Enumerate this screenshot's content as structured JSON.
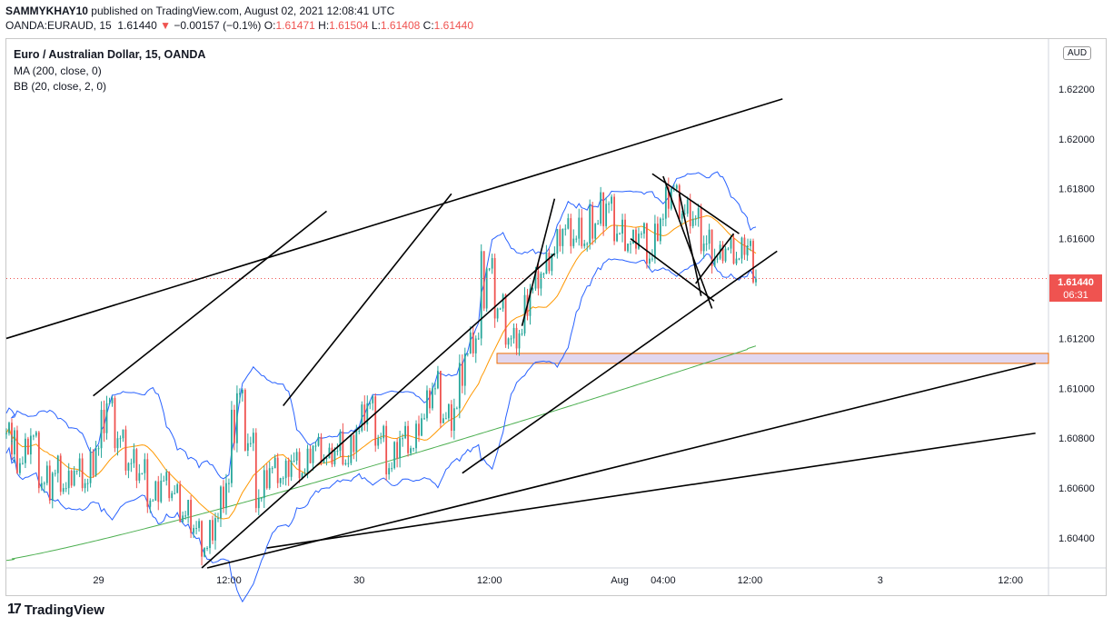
{
  "header": {
    "author": "SAMMYKHAY10",
    "published_text": "published on TradingView.com, August 02, 2021 12:08:41 UTC",
    "symbol": "OANDA:EURAUD, 15",
    "last": "1.61440",
    "change_arrow": "▼",
    "change": "−0.00157 (−0.1%)",
    "o_label": "O:",
    "o_value": "1.61471",
    "h_label": "H:",
    "h_value": "1.61504",
    "l_label": "L:",
    "l_value": "1.61408",
    "c_label": "C:",
    "c_value": "1.61440"
  },
  "legend": {
    "title": "Euro / Australian Dollar, 15, OANDA",
    "ma": "MA (200, close, 0)",
    "bb": "BB (20, close, 2, 0)"
  },
  "price_scale": {
    "currency": "AUD",
    "current_price": "1.61440",
    "countdown": "06:31"
  },
  "footer": {
    "brand": "TradingView"
  },
  "colors": {
    "up": "#26a69a",
    "down": "#ef5350",
    "ma": "#4caf50",
    "bb_basis": "#ff9800",
    "bb_bands": "#2962ff",
    "zone_fill": "#e1d7ef",
    "zone_border": "#ef6c00"
  },
  "chart_data": {
    "type": "candlestick",
    "y_ticks": [
      "1.62200",
      "1.62000",
      "1.61800",
      "1.61600",
      "1.61200",
      "1.61000",
      "1.60800",
      "1.60600",
      "1.60400"
    ],
    "y_tick_values": [
      1.622,
      1.62,
      1.618,
      1.616,
      1.612,
      1.61,
      1.608,
      1.606,
      1.604
    ],
    "ylim": [
      1.6028,
      1.624
    ],
    "x_ticks": [
      "29",
      "12:00",
      "30",
      "12:00",
      "Aug",
      "04:00",
      "12:00",
      "3",
      "12:00"
    ],
    "x_tick_hours": [
      0,
      12,
      24,
      36,
      48,
      52,
      60,
      72,
      84
    ],
    "xlim_hours": [
      -8.5,
      87.5
    ],
    "current_price": 1.6144,
    "candles_hourly": [
      [
        -8.5,
        1.6082,
        1.6088,
        1.6068,
        1.6079
      ],
      [
        -8.0,
        1.6079,
        1.6085,
        1.6062,
        1.607
      ],
      [
        -7.0,
        1.607,
        1.6084,
        1.6066,
        1.6081
      ],
      [
        -6.0,
        1.6081,
        1.6083,
        1.6058,
        1.6062
      ],
      [
        -5.0,
        1.6062,
        1.6072,
        1.6044,
        1.6066
      ],
      [
        -4.0,
        1.6066,
        1.6076,
        1.6057,
        1.606
      ],
      [
        -3.0,
        1.606,
        1.607,
        1.6055,
        1.6067
      ],
      [
        -2.0,
        1.6067,
        1.6074,
        1.6058,
        1.6062
      ],
      [
        -1.0,
        1.6062,
        1.608,
        1.6054,
        1.6076
      ],
      [
        0.0,
        1.6076,
        1.6098,
        1.607,
        1.6094
      ],
      [
        1.0,
        1.6094,
        1.6097,
        1.6072,
        1.608
      ],
      [
        2.0,
        1.608,
        1.6085,
        1.6064,
        1.607
      ],
      [
        3.0,
        1.607,
        1.6078,
        1.606,
        1.6066
      ],
      [
        4.0,
        1.6066,
        1.6074,
        1.605,
        1.6055
      ],
      [
        5.0,
        1.6055,
        1.6066,
        1.6046,
        1.6063
      ],
      [
        6.0,
        1.6063,
        1.6068,
        1.6054,
        1.6058
      ],
      [
        7.0,
        1.6058,
        1.6063,
        1.6044,
        1.6049
      ],
      [
        8.0,
        1.6049,
        1.6058,
        1.604,
        1.6044
      ],
      [
        9.0,
        1.6044,
        1.6048,
        1.6029,
        1.6036
      ],
      [
        10.0,
        1.6036,
        1.6052,
        1.603,
        1.6048
      ],
      [
        11.0,
        1.6048,
        1.6066,
        1.6042,
        1.6062
      ],
      [
        12.0,
        1.6062,
        1.6104,
        1.6058,
        1.6098
      ],
      [
        13.0,
        1.6098,
        1.61,
        1.6072,
        1.6078
      ],
      [
        14.0,
        1.6078,
        1.6084,
        1.6048,
        1.6056
      ],
      [
        15.0,
        1.6056,
        1.6072,
        1.6052,
        1.6068
      ],
      [
        16.0,
        1.6068,
        1.6074,
        1.606,
        1.6064
      ],
      [
        17.0,
        1.6064,
        1.6074,
        1.6058,
        1.6071
      ],
      [
        18.0,
        1.6071,
        1.6076,
        1.6062,
        1.6066
      ],
      [
        19.0,
        1.6066,
        1.608,
        1.6063,
        1.6077
      ],
      [
        20.0,
        1.6077,
        1.6082,
        1.6068,
        1.6072
      ],
      [
        21.0,
        1.6072,
        1.6078,
        1.6064,
        1.6075
      ],
      [
        22.0,
        1.6075,
        1.6086,
        1.6069,
        1.607
      ],
      [
        23.0,
        1.607,
        1.6086,
        1.6066,
        1.6083
      ],
      [
        24.0,
        1.6083,
        1.6098,
        1.6077,
        1.6094
      ],
      [
        25.0,
        1.6094,
        1.6098,
        1.6074,
        1.608
      ],
      [
        26.0,
        1.608,
        1.6087,
        1.6063,
        1.6068
      ],
      [
        27.0,
        1.6068,
        1.6083,
        1.6064,
        1.608
      ],
      [
        28.0,
        1.608,
        1.6087,
        1.6072,
        1.6076
      ],
      [
        29.0,
        1.6076,
        1.609,
        1.6074,
        1.6088
      ],
      [
        30.0,
        1.6088,
        1.6104,
        1.6084,
        1.61
      ],
      [
        31.0,
        1.61,
        1.611,
        1.6084,
        1.6088
      ],
      [
        32.0,
        1.6088,
        1.6096,
        1.6074,
        1.6092
      ],
      [
        33.0,
        1.6092,
        1.6118,
        1.6088,
        1.6114
      ],
      [
        34.0,
        1.6114,
        1.6126,
        1.6108,
        1.612
      ],
      [
        35.0,
        1.612,
        1.617,
        1.6116,
        1.6148
      ],
      [
        36.0,
        1.6148,
        1.6154,
        1.6124,
        1.6132
      ],
      [
        37.0,
        1.6132,
        1.614,
        1.6115,
        1.612
      ],
      [
        38.0,
        1.612,
        1.6126,
        1.611,
        1.6122
      ],
      [
        39.0,
        1.6122,
        1.6144,
        1.6118,
        1.614
      ],
      [
        40.0,
        1.614,
        1.615,
        1.6134,
        1.6146
      ],
      [
        41.0,
        1.6146,
        1.6158,
        1.614,
        1.6154
      ],
      [
        42.0,
        1.6154,
        1.6168,
        1.615,
        1.6164
      ],
      [
        43.0,
        1.6164,
        1.617,
        1.6154,
        1.616
      ],
      [
        44.0,
        1.616,
        1.6172,
        1.6156,
        1.6158
      ],
      [
        45.0,
        1.6158,
        1.618,
        1.6154,
        1.6166
      ],
      [
        46.0,
        1.6166,
        1.6184,
        1.6156,
        1.6174
      ],
      [
        47.0,
        1.6174,
        1.6178,
        1.6156,
        1.6162
      ],
      [
        48.0,
        1.6162,
        1.617,
        1.6152,
        1.6158
      ],
      [
        49.0,
        1.6158,
        1.6166,
        1.615,
        1.6162
      ],
      [
        50.0,
        1.6162,
        1.6168,
        1.6148,
        1.6152
      ],
      [
        51.0,
        1.6152,
        1.6172,
        1.615,
        1.6168
      ],
      [
        52.0,
        1.6168,
        1.6186,
        1.6164,
        1.618
      ],
      [
        53.0,
        1.618,
        1.6182,
        1.6166,
        1.617
      ],
      [
        54.0,
        1.617,
        1.6178,
        1.6162,
        1.6168
      ],
      [
        55.0,
        1.6168,
        1.6174,
        1.6152,
        1.6158
      ],
      [
        56.0,
        1.6158,
        1.6166,
        1.6146,
        1.6152
      ],
      [
        57.0,
        1.6152,
        1.616,
        1.6146,
        1.6156
      ],
      [
        58.0,
        1.6156,
        1.6162,
        1.6148,
        1.6152
      ],
      [
        59.0,
        1.6152,
        1.6164,
        1.615,
        1.6157
      ],
      [
        59.8,
        1.6157,
        1.616,
        1.6141,
        1.6144
      ]
    ]
  }
}
